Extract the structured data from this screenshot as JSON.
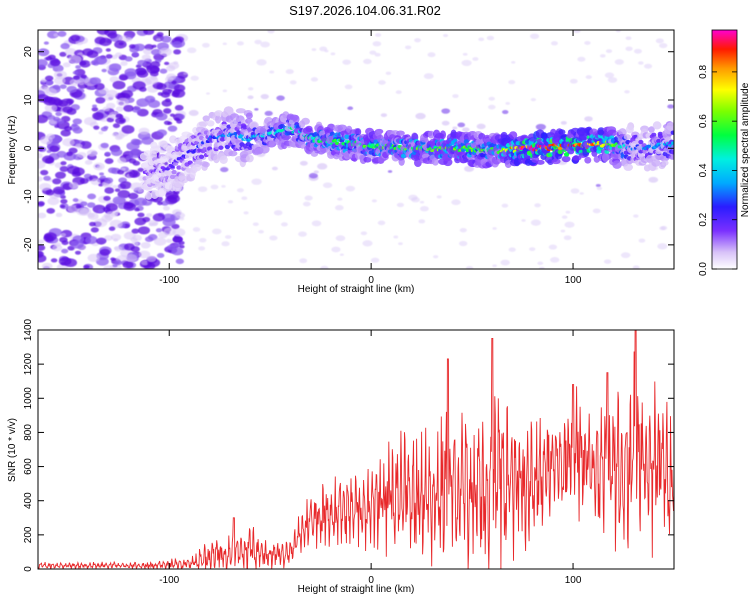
{
  "title": "S197.2026.104.06.31.R02",
  "colors": {
    "snr_line": "#e8282a",
    "blob_outer": "#d9c8f7",
    "blob_mid": "#8a5cf0",
    "blob_core": "#5a10e0"
  },
  "chart_data": [
    {
      "type": "heatmap",
      "title": "S197.2026.104.06.31.R02",
      "xlabel": "Height of straight line (km)",
      "ylabel": "Frequency (Hz)",
      "xlim": [
        -165,
        150
      ],
      "ylim": [
        -25,
        24.5
      ],
      "xticks": [
        -100,
        0,
        100
      ],
      "yticks": [
        -20,
        -10,
        0,
        10,
        20
      ],
      "colorbar": {
        "label": "Normalized spectral amplitude",
        "range": [
          0,
          0.97
        ],
        "ticks": [
          0.0,
          0.2,
          0.4,
          0.6,
          0.8
        ]
      },
      "ridge": [
        {
          "x": -110,
          "f": -5
        },
        {
          "x": -100,
          "f": -4
        },
        {
          "x": -90,
          "f": -1
        },
        {
          "x": -80,
          "f": 2
        },
        {
          "x": -70,
          "f": 3
        },
        {
          "x": -60,
          "f": 2
        },
        {
          "x": -50,
          "f": 3
        },
        {
          "x": -40,
          "f": 4
        },
        {
          "x": -30,
          "f": 2
        },
        {
          "x": -20,
          "f": 1.5
        },
        {
          "x": -10,
          "f": 1
        },
        {
          "x": 0,
          "f": 0.5
        },
        {
          "x": 20,
          "f": 0
        },
        {
          "x": 40,
          "f": 0
        },
        {
          "x": 60,
          "f": -0.5
        },
        {
          "x": 80,
          "f": 0
        },
        {
          "x": 100,
          "f": 0.5
        },
        {
          "x": 120,
          "f": 1
        },
        {
          "x": 130,
          "f": 0
        },
        {
          "x": 150,
          "f": 1
        }
      ],
      "ridge_amplitude": [
        {
          "x": -110,
          "a": 0.15
        },
        {
          "x": -80,
          "a": 0.3
        },
        {
          "x": -40,
          "a": 0.5
        },
        {
          "x": 0,
          "a": 0.6
        },
        {
          "x": 40,
          "a": 0.65
        },
        {
          "x": 60,
          "a": 0.6
        },
        {
          "x": 75,
          "a": 0.95
        },
        {
          "x": 95,
          "a": 0.95
        },
        {
          "x": 115,
          "a": 0.8
        },
        {
          "x": 130,
          "a": 0.3
        },
        {
          "x": 150,
          "a": 0.4
        }
      ]
    },
    {
      "type": "line",
      "xlabel": "Height of straight line (km)",
      "ylabel": "SNR (10 * v/v)",
      "xlim": [
        -165,
        150
      ],
      "ylim": [
        0,
        1400
      ],
      "xticks": [
        -100,
        0,
        100
      ],
      "yticks": [
        0,
        200,
        400,
        600,
        800,
        1000,
        1200,
        1400
      ],
      "envelope": [
        {
          "x": -165,
          "base": 20,
          "amp": 30
        },
        {
          "x": -110,
          "base": 20,
          "amp": 30
        },
        {
          "x": -90,
          "base": 30,
          "amp": 60
        },
        {
          "x": -80,
          "base": 80,
          "amp": 150
        },
        {
          "x": -60,
          "base": 120,
          "amp": 200
        },
        {
          "x": -50,
          "base": 80,
          "amp": 120
        },
        {
          "x": -40,
          "base": 100,
          "amp": 120
        },
        {
          "x": -30,
          "base": 300,
          "amp": 250
        },
        {
          "x": -10,
          "base": 350,
          "amp": 350
        },
        {
          "x": 10,
          "base": 400,
          "amp": 500
        },
        {
          "x": 30,
          "base": 450,
          "amp": 650
        },
        {
          "x": 50,
          "base": 450,
          "amp": 750
        },
        {
          "x": 60,
          "base": 500,
          "amp": 850
        },
        {
          "x": 75,
          "base": 500,
          "amp": 700
        },
        {
          "x": 90,
          "base": 600,
          "amp": 500
        },
        {
          "x": 100,
          "base": 700,
          "amp": 500
        },
        {
          "x": 115,
          "base": 550,
          "amp": 700
        },
        {
          "x": 130,
          "base": 650,
          "amp": 800
        },
        {
          "x": 150,
          "base": 600,
          "amp": 600
        }
      ],
      "peaks": [
        {
          "x": 60,
          "y": 1350
        },
        {
          "x": 131,
          "y": 1400
        },
        {
          "x": 117,
          "y": 1150
        },
        {
          "x": 100,
          "y": 1080
        },
        {
          "x": 38,
          "y": 1230
        },
        {
          "x": -68,
          "y": 300
        }
      ]
    }
  ]
}
